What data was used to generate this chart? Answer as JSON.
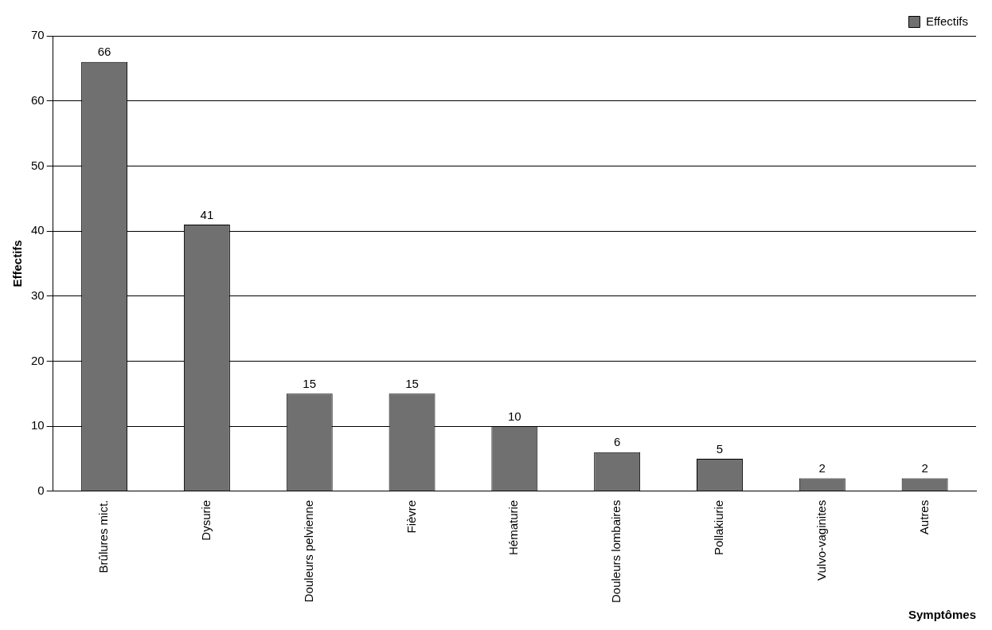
{
  "chart_data": {
    "type": "bar",
    "xlabel": "Symptômes",
    "ylabel": "Effectifs",
    "categories": [
      "Brûlures mict.",
      "Dysurie",
      "Douleurs pelvienne",
      "Fièvre",
      "Hématurie",
      "Douleurs lombaires",
      "Pollakiurie",
      "Vulvo-vaginites",
      "Autres"
    ],
    "series": [
      {
        "name": "Effectifs",
        "color": "#707070",
        "values": [
          66,
          41,
          15,
          15,
          10,
          6,
          5,
          2,
          2
        ]
      }
    ],
    "ylim": [
      0,
      70
    ],
    "yticks": [
      0,
      10,
      20,
      30,
      40,
      50,
      60,
      70
    ],
    "grid": "y",
    "legend": "top right",
    "data_labels": true
  }
}
